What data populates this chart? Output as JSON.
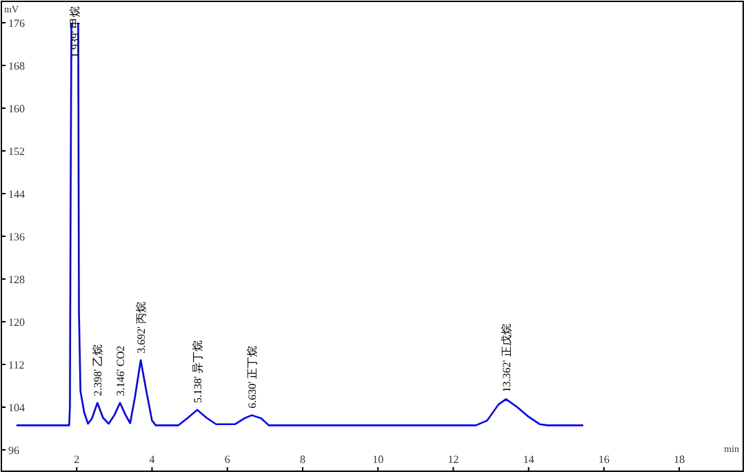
{
  "chart_data": {
    "type": "line",
    "xlabel": "min",
    "ylabel": "mV",
    "xlim": [
      0,
      19.7
    ],
    "ylim": [
      92,
      180
    ],
    "xticks": [
      2,
      4,
      6,
      8,
      10,
      12,
      14,
      16,
      18
    ],
    "yticks": [
      96,
      104,
      112,
      120,
      128,
      136,
      144,
      152,
      160,
      168,
      176
    ],
    "grid": false,
    "marker": "none",
    "line_style": "solid",
    "series": [
      {
        "color": "#0000ff",
        "x": [
          0.4,
          1.8,
          1.82,
          1.84,
          1.86,
          1.88,
          2.02,
          2.04,
          2.06,
          2.1,
          2.2,
          2.3,
          2.4,
          2.55,
          2.7,
          2.85,
          3.0,
          3.15,
          3.3,
          3.42,
          3.55,
          3.7,
          3.85,
          4.0,
          4.1,
          4.7,
          4.95,
          5.2,
          5.45,
          5.7,
          6.2,
          6.45,
          6.65,
          6.9,
          7.1,
          12.6,
          12.9,
          13.2,
          13.4,
          13.7,
          14.0,
          14.3,
          14.5,
          15.45
        ],
        "values": [
          100.6,
          100.6,
          104,
          145,
          176,
          null,
          null,
          176,
          122,
          107,
          103,
          100.9,
          101.8,
          104.8,
          102,
          100.9,
          102.5,
          104.8,
          102.5,
          101,
          106,
          112.8,
          107,
          101.5,
          100.6,
          100.6,
          102,
          103.5,
          102,
          100.8,
          100.8,
          101.9,
          102.5,
          101.9,
          100.6,
          100.6,
          101.5,
          104.5,
          105.5,
          104,
          102.2,
          100.8,
          100.6,
          100.6
        ]
      }
    ],
    "annotations": [
      {
        "text": "1.939' 甲烷",
        "x": 1.939,
        "y": 176
      },
      {
        "text": "2.398' 乙烷",
        "x": 2.55,
        "y": 104.8
      },
      {
        "text": "3.146' CO2",
        "x": 3.15,
        "y": 104.8
      },
      {
        "text": "3.692' 丙烷",
        "x": 3.7,
        "y": 112.8
      },
      {
        "text": "5.138' 异丁烷",
        "x": 5.2,
        "y": 103.5
      },
      {
        "text": "6.630' 正丁烷",
        "x": 6.65,
        "y": 102.5
      },
      {
        "text": "13.362' 正戊烷",
        "x": 13.4,
        "y": 105.5
      }
    ]
  }
}
